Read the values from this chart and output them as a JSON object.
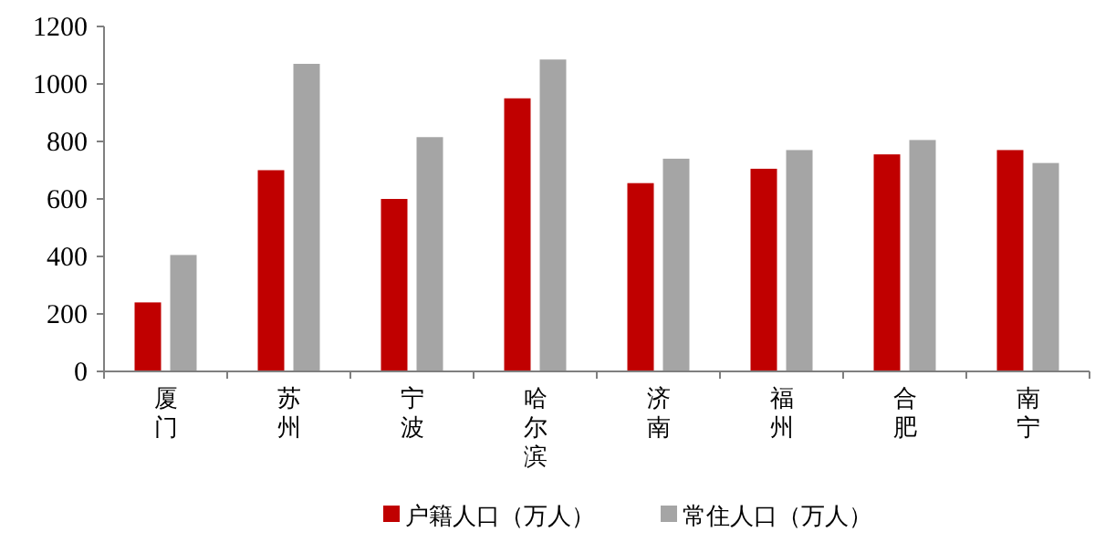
{
  "chart_data": {
    "type": "bar",
    "categories": [
      "厦门",
      "苏州",
      "宁波",
      "哈尔滨",
      "济南",
      "福州",
      "合肥",
      "南宁"
    ],
    "series": [
      {
        "name": "户籍人口（万人）",
        "color": "#c00000",
        "values": [
          240,
          700,
          600,
          950,
          655,
          705,
          755,
          770
        ]
      },
      {
        "name": "常住人口（万人）",
        "color": "#a5a5a5",
        "values": [
          405,
          1070,
          815,
          1085,
          740,
          770,
          805,
          725
        ]
      }
    ],
    "ylim": [
      0,
      1200
    ],
    "yticks": [
      0,
      200,
      400,
      600,
      800,
      1000,
      1200
    ],
    "grid": false,
    "legend": "bottom"
  }
}
